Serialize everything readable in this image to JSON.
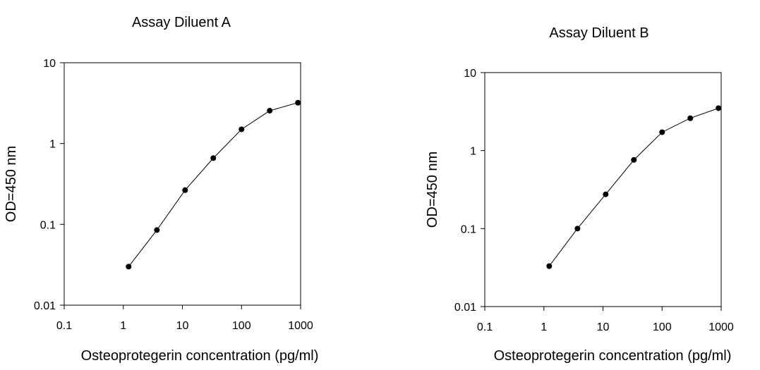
{
  "chart_data": [
    {
      "type": "line",
      "title": "Assay Diluent A",
      "xlabel": "Osteoprotegerin concentration (pg/ml)",
      "ylabel": "OD=450 nm",
      "xscale": "log",
      "yscale": "log",
      "xlim": [
        0.1,
        1000
      ],
      "ylim": [
        0.01,
        10
      ],
      "xticks": [
        "0.1",
        "1",
        "10",
        "100",
        "1000"
      ],
      "yticks": [
        "0.01",
        "0.1",
        "1",
        "10"
      ],
      "series": [
        {
          "name": "Assay Diluent A",
          "x": [
            1.23,
            3.7,
            11.1,
            33.3,
            100,
            300,
            900
          ],
          "values": [
            0.03,
            0.085,
            0.265,
            0.66,
            1.5,
            2.55,
            3.2
          ]
        }
      ]
    },
    {
      "type": "line",
      "title": "Assay Diluent B",
      "xlabel": "Osteoprotegerin concentration (pg/ml)",
      "ylabel": "OD=450 nm",
      "xscale": "log",
      "yscale": "log",
      "xlim": [
        0.1,
        1000
      ],
      "ylim": [
        0.01,
        10
      ],
      "xticks": [
        "0.1",
        "1",
        "10",
        "100",
        "1000"
      ],
      "yticks": [
        "0.01",
        "0.1",
        "1",
        "10"
      ],
      "series": [
        {
          "name": "Assay Diluent B",
          "x": [
            1.23,
            3.7,
            11.1,
            33.3,
            100,
            300,
            900
          ],
          "values": [
            0.033,
            0.1,
            0.275,
            0.76,
            1.72,
            2.6,
            3.5
          ]
        }
      ]
    }
  ]
}
